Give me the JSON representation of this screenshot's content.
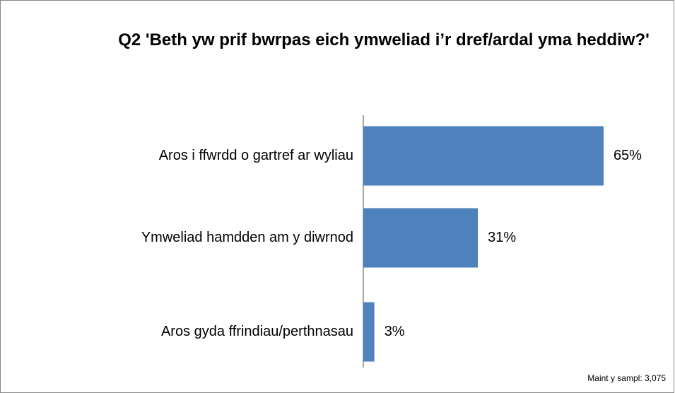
{
  "chart_data": {
    "type": "bar",
    "orientation": "horizontal",
    "title": "Q2 'Beth yw prif bwrpas eich ymweliad i’r dref/ardal yma heddiw?'",
    "categories": [
      "Aros i ffwrdd o gartref ar wyliau",
      "Ymweliad hamdden am y diwrnod",
      "Aros gyda ffrindiau/perthnasau"
    ],
    "values": [
      65,
      31,
      3
    ],
    "value_labels": [
      "65%",
      "31%",
      "3%"
    ],
    "color": "#4f81bd",
    "note": "Maint y sampl: 3,075"
  }
}
